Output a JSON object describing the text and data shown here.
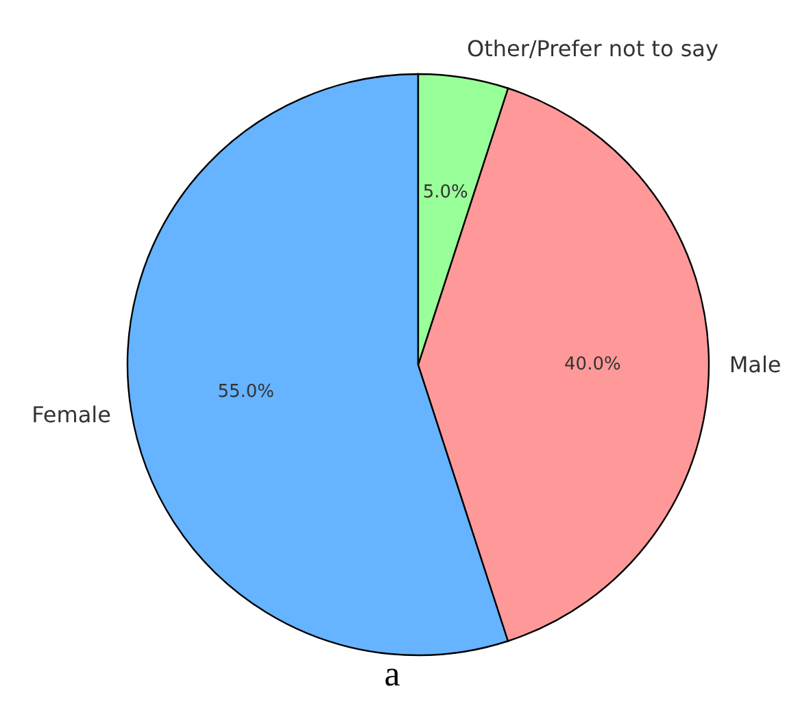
{
  "chart_data": {
    "type": "pie",
    "categories": [
      "Female",
      "Male",
      "Other/Prefer not to say"
    ],
    "values": [
      55,
      40,
      5
    ],
    "colors": [
      "#66b3ff",
      "#ff9999",
      "#99ff99"
    ],
    "value_labels": [
      "55.0%",
      "40.0%",
      "5.0%"
    ],
    "annotations": [
      "a"
    ]
  }
}
